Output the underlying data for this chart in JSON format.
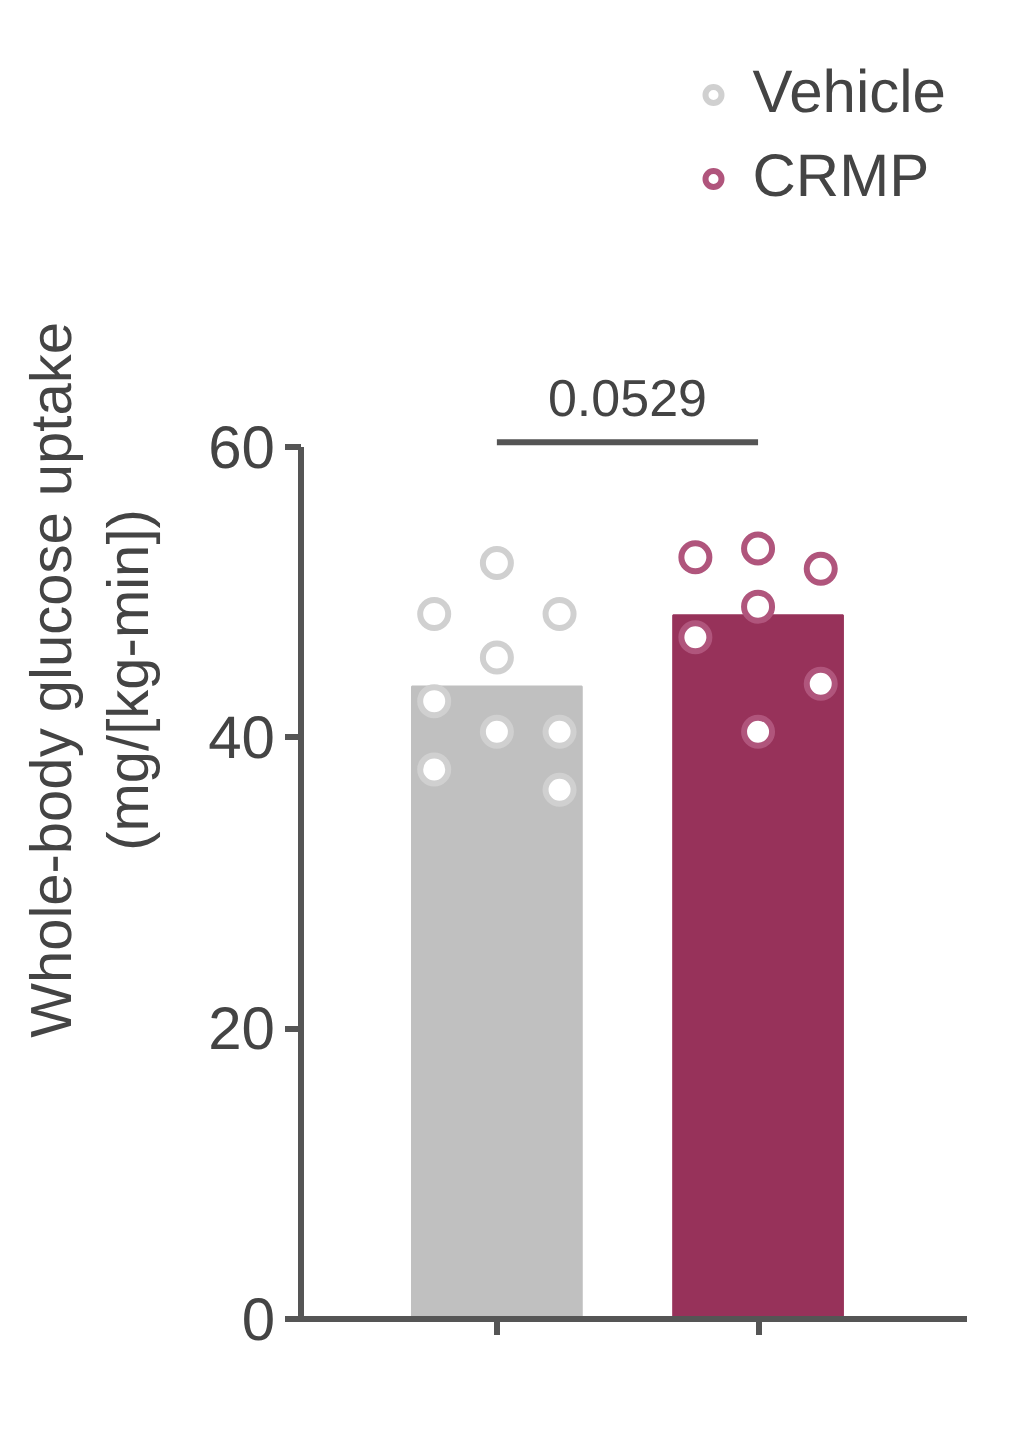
{
  "chart_data": {
    "type": "bar",
    "ylabel": "Whole-body glucose uptake\n(mg/[kg-min])",
    "categories": [
      null,
      null
    ],
    "values": [
      43.5,
      48.4
    ],
    "colors": [
      "#c0c0c0",
      "#97325a"
    ],
    "series": [
      {
        "name": "Vehicle",
        "type": "scatter",
        "color": "#d0d0d0",
        "values": [
          52.0,
          null
        ]
      },
      {
        "type": "scatter",
        "color": "#d0d0d0",
        "values": [
          48.5,
          null
        ]
      },
      {
        "type": "scatter",
        "color": "#d0d0d0",
        "values": [
          48.5,
          null
        ]
      },
      {
        "type": "scatter",
        "color": "#d0d0d0",
        "values": [
          45.5,
          null
        ]
      },
      {
        "type": "scatter",
        "color": "#d0d0d0",
        "values": [
          42.5,
          null
        ]
      },
      {
        "type": "scatter",
        "color": "#d0d0d0",
        "values": [
          40.4,
          null
        ]
      },
      {
        "type": "scatter",
        "color": "#d0d0d0",
        "values": [
          40.4,
          null
        ]
      },
      {
        "type": "scatter",
        "color": "#d0d0d0",
        "values": [
          37.8,
          null
        ]
      },
      {
        "type": "scatter",
        "color": "#d0d0d0",
        "values": [
          36.4,
          null
        ]
      },
      {
        "name": "CRMP",
        "type": "scatter",
        "color": "#b0557c",
        "values": [
          null,
          53.0
        ]
      },
      {
        "type": "scatter",
        "color": "#b0557c",
        "values": [
          null,
          52.4
        ]
      },
      {
        "type": "scatter",
        "color": "#b0557c",
        "values": [
          null,
          51.6
        ]
      },
      {
        "type": "scatter",
        "color": "#b0557c",
        "values": [
          null,
          49.0
        ]
      },
      {
        "type": "scatter",
        "color": "#b0557c",
        "values": [
          null,
          46.9
        ]
      },
      {
        "type": "scatter",
        "color": "#b0557c",
        "values": [
          null,
          43.7
        ]
      },
      {
        "type": "scatter",
        "color": "#b0557c",
        "values": [
          null,
          40.4
        ]
      }
    ],
    "ylim": [
      0,
      60
    ],
    "yticks": [
      0,
      20,
      40,
      60
    ],
    "tick_labels": "y",
    "grid": false,
    "legend": "top right",
    "marker": "circle",
    "annotations": [
      "0.0529"
    ]
  }
}
